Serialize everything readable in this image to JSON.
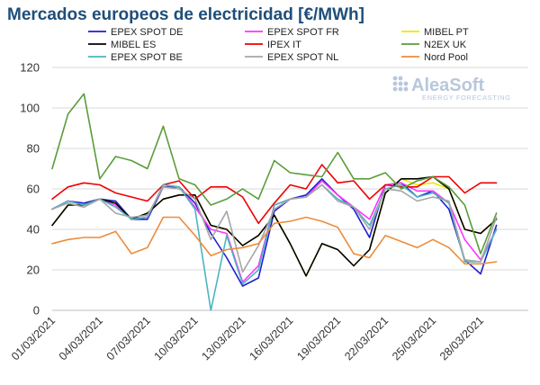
{
  "chart_data": {
    "type": "line",
    "title": "Mercados europeos de electricidad [€/MWh]",
    "ylim": [
      0,
      120
    ],
    "yticks": [
      0,
      20,
      40,
      60,
      80,
      100,
      120
    ],
    "grid": true,
    "legend_position": "top",
    "x": [
      "01/03/2021",
      "02/03/2021",
      "03/03/2021",
      "04/03/2021",
      "05/03/2021",
      "06/03/2021",
      "07/03/2021",
      "08/03/2021",
      "09/03/2021",
      "10/03/2021",
      "11/03/2021",
      "12/03/2021",
      "13/03/2021",
      "14/03/2021",
      "15/03/2021",
      "16/03/2021",
      "17/03/2021",
      "18/03/2021",
      "19/03/2021",
      "20/03/2021",
      "21/03/2021",
      "22/03/2021",
      "23/03/2021",
      "24/03/2021",
      "25/03/2021",
      "26/03/2021",
      "27/03/2021",
      "28/03/2021",
      "29/03/2021",
      "30/03/2021",
      "31/03/2021"
    ],
    "xtick_labels": [
      "01/03/2021",
      "04/03/2021",
      "07/03/2021",
      "10/03/2021",
      "13/03/2021",
      "16/03/2021",
      "19/03/2021",
      "22/03/2021",
      "25/03/2021",
      "28/03/2021"
    ],
    "series": [
      {
        "name": "EPEX SPOT DE",
        "color": "#1f1fd0",
        "values": [
          50,
          54,
          53,
          55,
          54,
          45,
          45,
          61,
          61,
          53,
          38,
          26,
          12,
          16,
          49,
          55,
          57,
          65,
          57,
          50,
          36,
          62,
          63,
          56,
          59,
          50,
          25,
          18,
          42,
          null,
          null
        ]
      },
      {
        "name": "EPEX SPOT FR",
        "color": "#ff33ff",
        "values": [
          50,
          54,
          52,
          55,
          52,
          45,
          46,
          62,
          61,
          51,
          40,
          38,
          14,
          22,
          52,
          55,
          56,
          64,
          57,
          51,
          45,
          62,
          63,
          59,
          59,
          53,
          35,
          25,
          40,
          null,
          null
        ]
      },
      {
        "name": "MIBEL PT",
        "color": "#f2e600",
        "values": [
          42,
          52,
          52,
          55,
          53,
          45,
          48,
          55,
          57,
          57,
          42,
          40,
          32,
          37,
          47,
          33,
          17,
          33,
          30,
          22,
          30,
          58,
          65,
          62,
          63,
          60,
          40,
          38,
          45,
          null,
          null
        ]
      },
      {
        "name": "MIBEL ES",
        "color": "#000000",
        "values": [
          42,
          52,
          52,
          55,
          53,
          45,
          48,
          55,
          57,
          57,
          42,
          40,
          32,
          37,
          47,
          33,
          17,
          33,
          30,
          22,
          30,
          58,
          65,
          65,
          66,
          60,
          40,
          38,
          45,
          null,
          null
        ]
      },
      {
        "name": "IPEX IT",
        "color": "#ee0000",
        "values": [
          55,
          61,
          63,
          62,
          58,
          56,
          54,
          62,
          64,
          55,
          61,
          61,
          56,
          43,
          53,
          62,
          60,
          72,
          63,
          64,
          55,
          62,
          61,
          61,
          66,
          66,
          58,
          63,
          63,
          null,
          null
        ]
      },
      {
        "name": "N2EX UK",
        "color": "#5b9c3b",
        "values": [
          70,
          97,
          107,
          65,
          76,
          74,
          70,
          91,
          65,
          62,
          52,
          55,
          60,
          55,
          74,
          68,
          67,
          66,
          78,
          65,
          65,
          68,
          60,
          64,
          66,
          61,
          52,
          28,
          48,
          null,
          null
        ]
      },
      {
        "name": "EPEX SPOT BE",
        "color": "#4bb5bf",
        "values": [
          50,
          54,
          52,
          55,
          51,
          45,
          46,
          62,
          61,
          50,
          0,
          37,
          13,
          20,
          52,
          55,
          56,
          62,
          55,
          51,
          42,
          60,
          62,
          56,
          58,
          53,
          24,
          24,
          40,
          null,
          null
        ]
      },
      {
        "name": "EPEX SPOT NL",
        "color": "#a6a6a6",
        "values": [
          50,
          53,
          51,
          55,
          48,
          46,
          47,
          61,
          60,
          55,
          35,
          49,
          19,
          32,
          50,
          55,
          56,
          62,
          54,
          51,
          40,
          60,
          59,
          54,
          56,
          54,
          25,
          24,
          46,
          null,
          null
        ]
      },
      {
        "name": "Nord Pool",
        "color": "#ed8c3a",
        "values": [
          33,
          35,
          36,
          36,
          39,
          28,
          31,
          46,
          46,
          37,
          27,
          30,
          31,
          33,
          43,
          44,
          46,
          44,
          41,
          28,
          26,
          37,
          34,
          31,
          35,
          31,
          23,
          23,
          24,
          null,
          null
        ]
      }
    ]
  },
  "logo": {
    "name": "AleaSoft",
    "tagline": "ENERGY FORECASTING"
  }
}
